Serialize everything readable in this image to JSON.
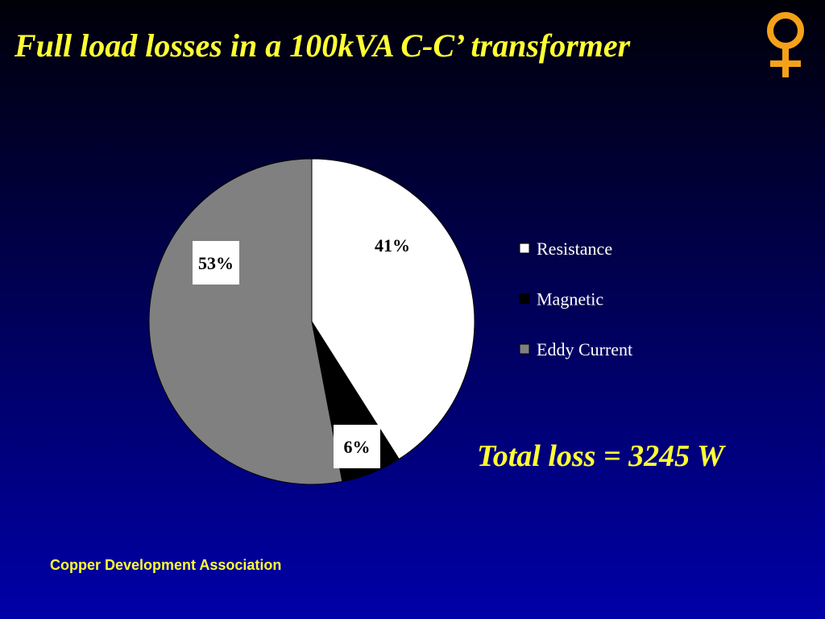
{
  "chart_data": {
    "type": "pie",
    "title": "Full load losses in a 100kVA C-C’ transformer",
    "categories": [
      "Resistance",
      "Magnetic",
      "Eddy Current"
    ],
    "values": [
      41,
      6,
      53
    ],
    "value_labels": [
      "41%",
      "6%",
      "53%"
    ],
    "colors": [
      "#ffffff",
      "#000000",
      "#808080"
    ],
    "annotation": "Total loss = 3245 W",
    "footer": "Copper Development Association"
  }
}
